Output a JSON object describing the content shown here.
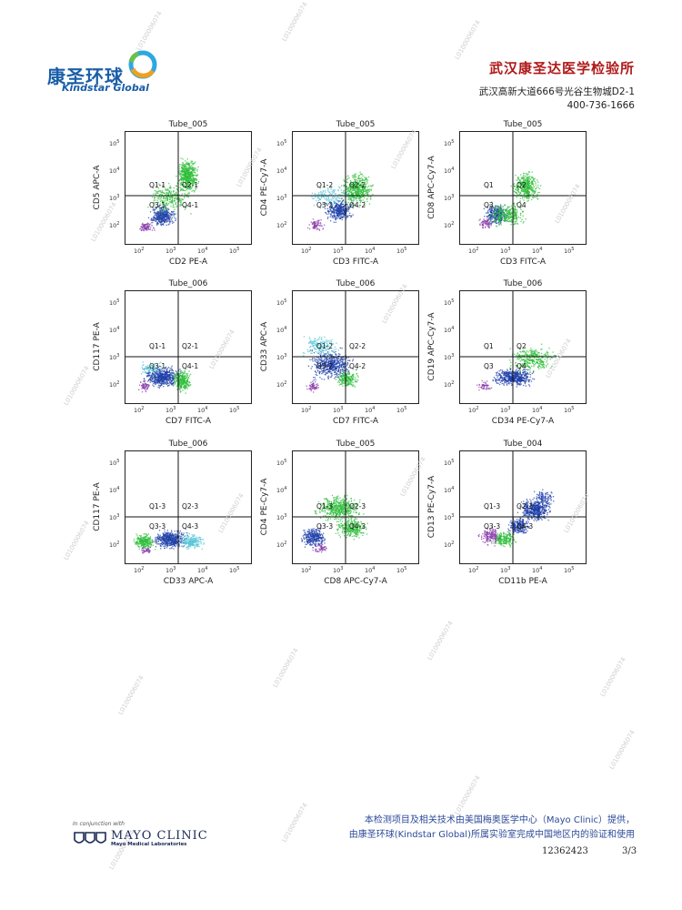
{
  "header": {
    "logo_cn": "康圣环球",
    "logo_en": "Kindstar Global",
    "lab_name": "武汉康圣达医学检验所",
    "address": "武汉高新大道666号光谷生物城D2-1",
    "phone": "400-736-1666"
  },
  "colors": {
    "green": "#2ebd3a",
    "blue": "#1d3fa8",
    "cyan": "#4fc3d6",
    "purple": "#8a3aa8",
    "lab_red": "#b01818",
    "footer_blue": "#2c4a98"
  },
  "plots": [
    {
      "tube": "Tube_005",
      "xlabel": "CD2 PE-A",
      "ylabel": "CD5 APC-A",
      "q": [
        "Q1-1",
        "Q2-1",
        "Q3-1",
        "Q4-1"
      ]
    },
    {
      "tube": "Tube_005",
      "xlabel": "CD3 FITC-A",
      "ylabel": "CD4 PE-Cy7-A",
      "q": [
        "Q1-2",
        "Q2-2",
        "Q3-2",
        "Q4-2"
      ]
    },
    {
      "tube": "Tube_005",
      "xlabel": "CD3 FITC-A",
      "ylabel": "CD8 APC-Cy7-A",
      "q": [
        "Q1",
        "Q2",
        "Q3",
        "Q4"
      ]
    },
    {
      "tube": "Tube_006",
      "xlabel": "CD7 FITC-A",
      "ylabel": "CD117 PE-A",
      "q": [
        "Q1-1",
        "Q2-1",
        "Q3-1",
        "Q4-1"
      ]
    },
    {
      "tube": "Tube_006",
      "xlabel": "CD7 FITC-A",
      "ylabel": "CD33 APC-A",
      "q": [
        "Q1-2",
        "Q2-2",
        "Q3-2",
        "Q4-2"
      ]
    },
    {
      "tube": "Tube_006",
      "xlabel": "CD34 PE-Cy7-A",
      "ylabel": "CD19 APC-Cy7-A",
      "q": [
        "Q1",
        "Q2",
        "Q3",
        "Q4"
      ]
    },
    {
      "tube": "Tube_006",
      "xlabel": "CD33 APC-A",
      "ylabel": "CD117 PE-A",
      "q": [
        "Q1-3",
        "Q2-3",
        "Q3-3",
        "Q4-3"
      ]
    },
    {
      "tube": "Tube_005",
      "xlabel": "CD8 APC-Cy7-A",
      "ylabel": "CD4 PE-Cy7-A",
      "q": [
        "Q1-3",
        "Q2-3",
        "Q3-3",
        "Q4-3"
      ]
    },
    {
      "tube": "Tube_004",
      "xlabel": "CD11b PE-A",
      "ylabel": "CD13 PE-Cy7-A",
      "q": [
        "Q1-3",
        "Q2-3",
        "Q3-3",
        "Q4-3"
      ]
    }
  ],
  "axis_ticks": {
    "base": "10",
    "exponents": [
      "2",
      "3",
      "4",
      "5"
    ]
  },
  "watermark": "L0100006074",
  "footer": {
    "mayo_small": "In conjunction with",
    "mayo_name": "MAYO CLINIC",
    "mayo_sub": "Mayo Medical Laboratories",
    "line1": "本检测项目及相关技术由美国梅奥医学中心（Mayo Clinic）提供，",
    "line2": "由康圣环球(Kindstar Global)所属实验室完成中国地区内的验证和使用",
    "report_id": "12362423",
    "page": "3/3"
  }
}
